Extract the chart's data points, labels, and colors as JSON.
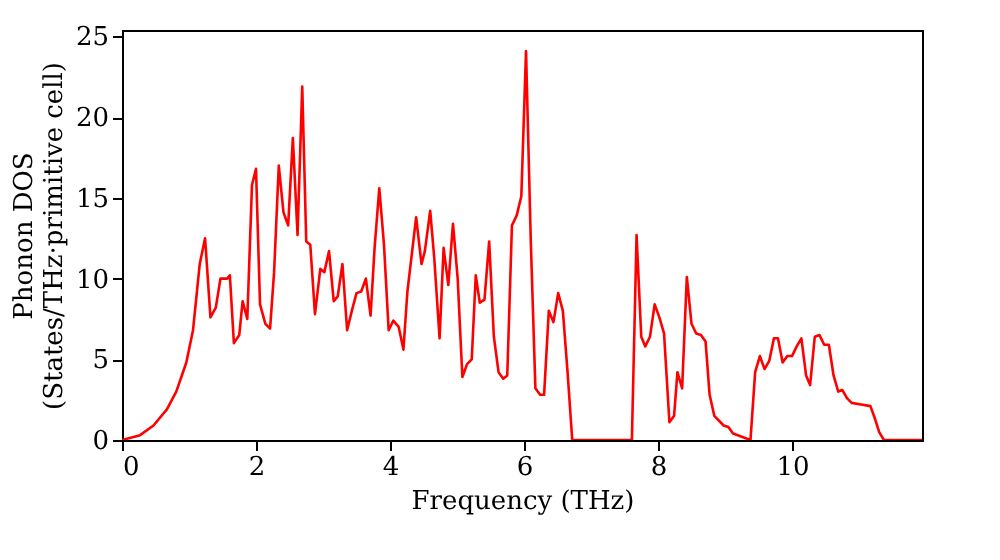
{
  "chart_data": {
    "type": "line",
    "xlabel": "Frequency (THz)",
    "ylabel": "Phonon DOS\n(States/THz·primitive cell)",
    "xlim": [
      0,
      11.94
    ],
    "xticks": [
      0,
      2,
      4,
      6,
      8,
      10
    ],
    "ylim": [
      0,
      25.4
    ],
    "yticks": [
      0,
      5,
      10,
      15,
      20,
      25
    ],
    "grid": false,
    "marker": "none",
    "line_style": "solid",
    "series": [
      {
        "color": "#ff0000",
        "x": [
          0,
          0.27,
          0.47,
          0.67,
          0.81,
          0.96,
          1.06,
          1.16,
          1.24,
          1.32,
          1.4,
          1.47,
          1.57,
          1.61,
          1.67,
          1.75,
          1.8,
          1.87,
          1.94,
          2.0,
          2.06,
          2.14,
          2.21,
          2.27,
          2.34,
          2.41,
          2.48,
          2.55,
          2.62,
          2.69,
          2.75,
          2.81,
          2.88,
          2.96,
          3.02,
          3.09,
          3.16,
          3.22,
          3.29,
          3.36,
          3.43,
          3.5,
          3.57,
          3.64,
          3.71,
          3.77,
          3.84,
          3.91,
          3.98,
          4.05,
          4.13,
          4.2,
          4.26,
          4.39,
          4.47,
          4.52,
          4.6,
          4.66,
          4.74,
          4.8,
          4.87,
          4.94,
          5.01,
          5.08,
          5.15,
          5.22,
          5.28,
          5.34,
          5.41,
          5.48,
          5.55,
          5.62,
          5.69,
          5.75,
          5.82,
          5.89,
          5.96,
          6.03,
          6.1,
          6.17,
          6.24,
          6.3,
          6.37,
          6.44,
          6.51,
          6.58,
          6.65,
          6.72,
          7.61,
          7.68,
          7.75,
          7.81,
          7.88,
          7.95,
          8.02,
          8.09,
          8.17,
          8.24,
          8.29,
          8.36,
          8.43,
          8.5,
          8.57,
          8.64,
          8.71,
          8.77,
          8.84,
          8.98,
          9.05,
          9.12,
          9.25,
          9.38,
          9.45,
          9.52,
          9.59,
          9.66,
          9.73,
          9.79,
          9.86,
          9.93,
          10.0,
          10.07,
          10.14,
          10.21,
          10.27,
          10.34,
          10.41,
          10.48,
          10.55,
          10.62,
          10.69,
          10.75,
          10.82,
          10.89,
          11.03,
          11.17,
          11.24,
          11.3,
          11.37,
          11.94
        ],
        "values": [
          0,
          0.3,
          0.9,
          1.9,
          3.0,
          4.8,
          6.8,
          10.9,
          12.5,
          7.6,
          8.2,
          10.0,
          10.0,
          10.2,
          6.0,
          6.5,
          8.6,
          7.5,
          15.8,
          16.8,
          8.4,
          7.2,
          6.9,
          10.4,
          17.0,
          14.1,
          13.3,
          18.7,
          12.7,
          21.9,
          12.3,
          12.1,
          7.8,
          10.6,
          10.4,
          11.7,
          8.6,
          8.9,
          10.9,
          6.8,
          8.0,
          9.1,
          9.2,
          10.0,
          7.7,
          11.9,
          15.6,
          12.1,
          6.8,
          7.4,
          7.0,
          5.6,
          9.2,
          13.8,
          10.9,
          11.7,
          14.2,
          11.3,
          6.3,
          11.9,
          9.6,
          13.4,
          10.0,
          3.9,
          4.7,
          5.0,
          10.2,
          8.5,
          8.7,
          12.3,
          6.4,
          4.2,
          3.8,
          4.0,
          13.3,
          13.9,
          15.1,
          24.1,
          12.5,
          3.2,
          2.8,
          2.8,
          8.0,
          7.3,
          9.1,
          8.0,
          4.2,
          0,
          0,
          12.7,
          6.4,
          5.8,
          6.4,
          8.4,
          7.6,
          6.6,
          1.1,
          1.5,
          4.2,
          3.2,
          10.1,
          7.2,
          6.6,
          6.5,
          6.1,
          2.8,
          1.5,
          0.9,
          0.8,
          0.4,
          0.2,
          0,
          4.2,
          5.2,
          4.4,
          4.9,
          6.3,
          6.3,
          4.8,
          5.2,
          5.2,
          5.8,
          6.3,
          4.0,
          3.4,
          6.4,
          6.5,
          5.9,
          5.9,
          4.0,
          3.0,
          3.1,
          2.6,
          2.3,
          2.2,
          2.1,
          1.3,
          0.5,
          0,
          0
        ]
      }
    ]
  }
}
